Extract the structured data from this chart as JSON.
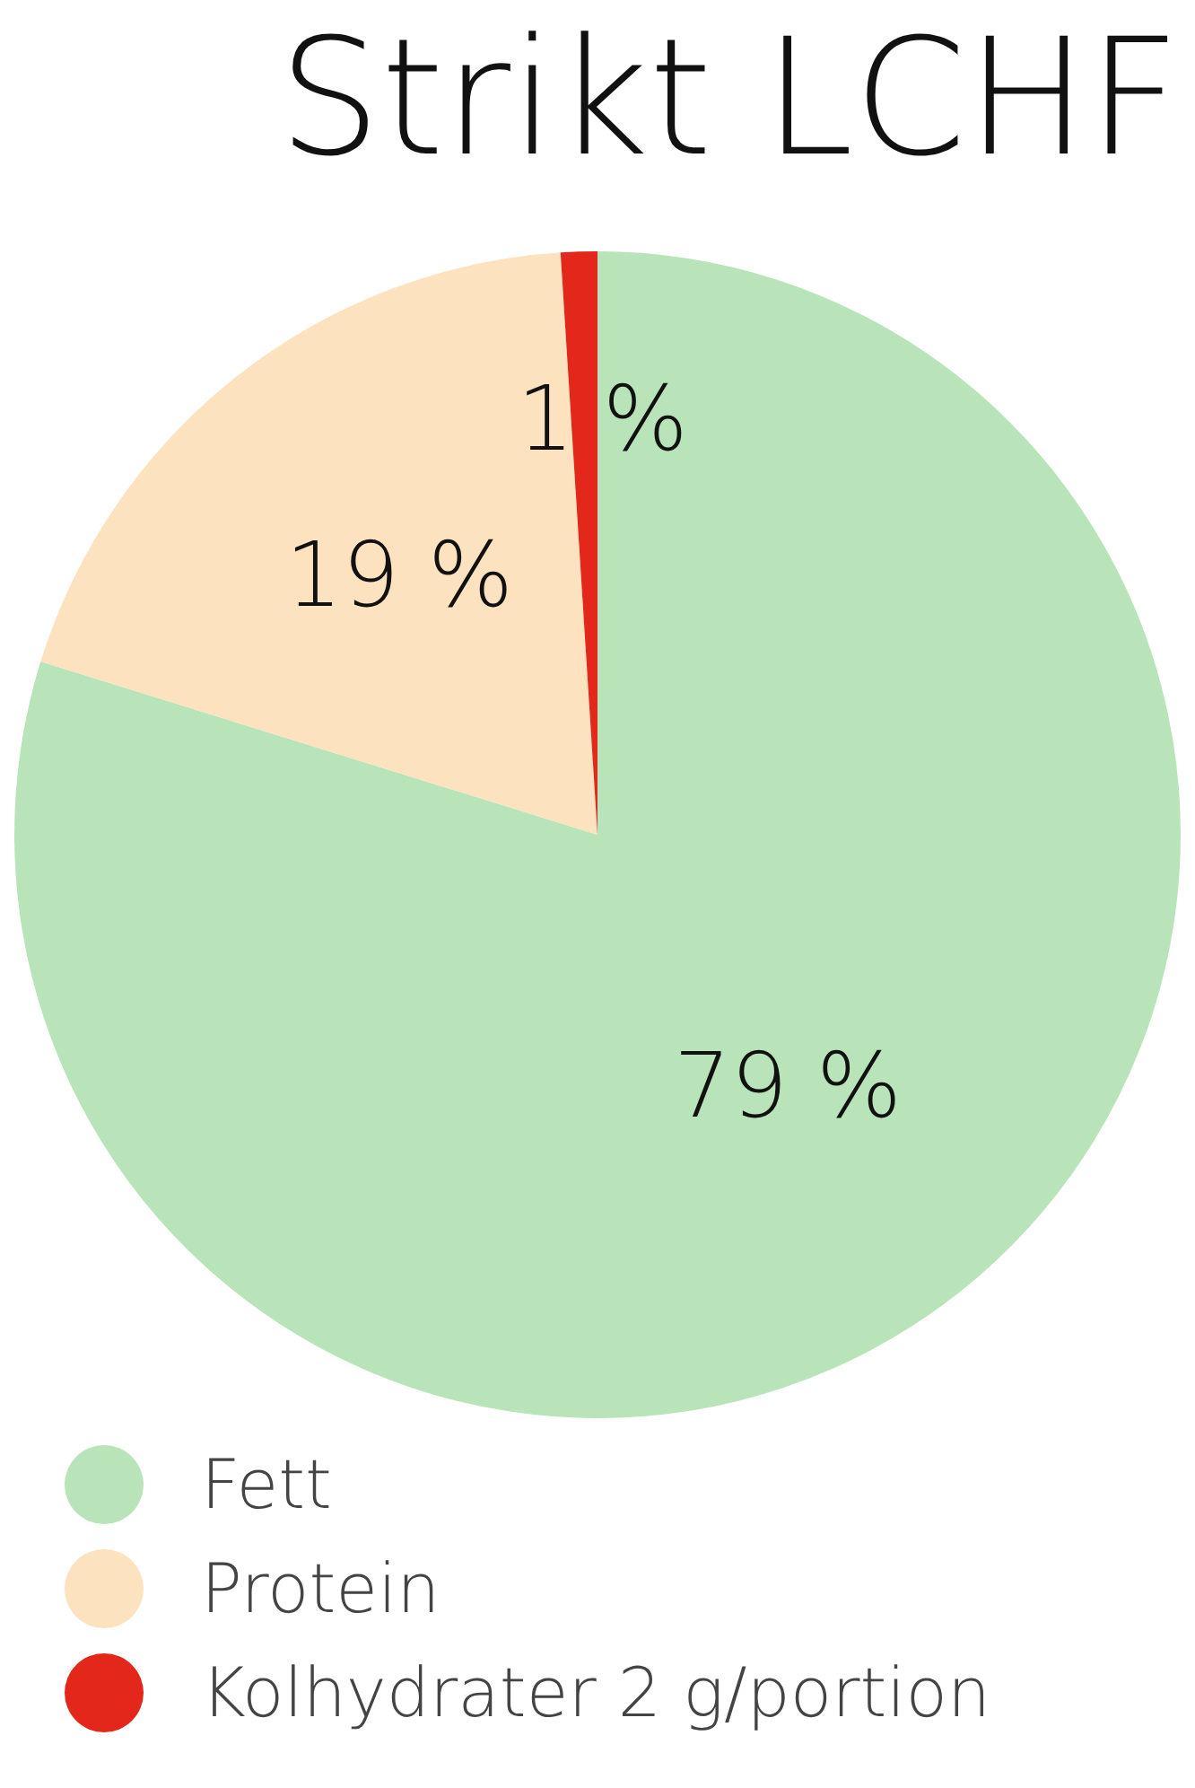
{
  "chart_data": {
    "type": "pie",
    "title": "Strikt LCHF",
    "categories": [
      "Fett",
      "Protein",
      "Kolhydrater 2 g/portion"
    ],
    "values": [
      79,
      19,
      1
    ],
    "colors": [
      "#b9e4b9",
      "#fde2bf",
      "#e3271b"
    ],
    "value_labels": [
      "79 %",
      "19 %",
      "1 %"
    ],
    "legend": "bottom left"
  }
}
